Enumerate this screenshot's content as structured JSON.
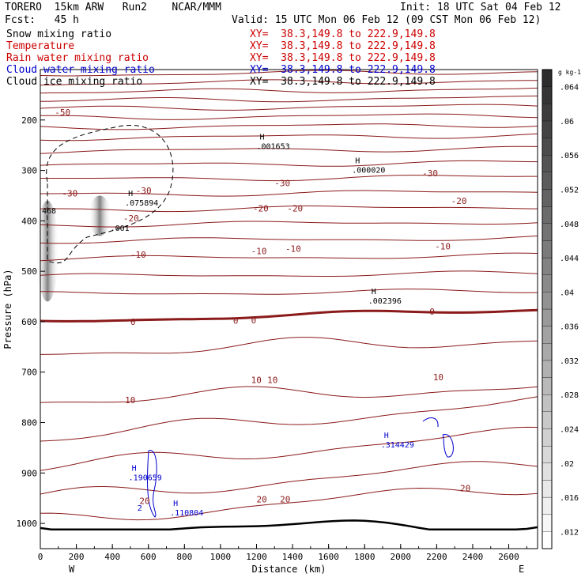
{
  "header": {
    "model_line": "TORERO  15km ARW   Run2    NCAR/MMM",
    "init": "Init: 18 UTC Sat 04 Feb 12",
    "fcst": "Fcst:   45 h",
    "valid": "Valid: 15 UTC Mon 06 Feb 12 (09 CST Mon 06 Feb 12)"
  },
  "fields": [
    {
      "label": "Snow mixing ratio",
      "xy": "XY=  38.3,149.8 to 222.9,149.8",
      "color": "#000000"
    },
    {
      "label": "Temperature",
      "xy": "XY=  38.3,149.8 to 222.9,149.8",
      "color": "#cc0000"
    },
    {
      "label": "Rain water mixing ratio",
      "xy": "XY=  38.3,149.8 to 222.9,149.8",
      "color": "#cc0000"
    },
    {
      "label": "Cloud water mixing ratio",
      "xy": "XY=  38.3,149.8 to 222.9,149.8",
      "color": "#0000cc"
    },
    {
      "label": "Cloud ice mixing ratio",
      "xy": "XY=  38.3,149.8 to 222.9,149.8",
      "color": "#000000"
    }
  ],
  "chart_data": {
    "type": "contour",
    "xlabel": "Distance (km)",
    "ylabel": "Pressure (hPa)",
    "xlim": [
      0,
      2760
    ],
    "ylim": [
      1050,
      100
    ],
    "x_ticks": [
      0,
      200,
      400,
      600,
      800,
      1000,
      1200,
      1400,
      1600,
      1800,
      2000,
      2200,
      2400,
      2600
    ],
    "y_ticks": [
      200,
      300,
      400,
      500,
      600,
      700,
      800,
      900,
      1000
    ],
    "endpoints": {
      "left": "W",
      "right": "E"
    },
    "colorbar": {
      "unit": "g kg-1",
      "ticks": [
        ".012",
        ".016",
        ".02",
        ".024",
        ".028",
        ".032",
        ".036",
        ".04",
        ".044",
        ".048",
        ".052",
        ".056",
        ".06",
        ".064"
      ],
      "min": 0.01,
      "max": 0.066
    },
    "temperature_contours": [
      {
        "value": "-50",
        "x": 80,
        "p": 185,
        "color": "#8b1a1a"
      },
      {
        "value": "-30",
        "x": 120,
        "p": 345,
        "color": "#8b1a1a"
      },
      {
        "value": "-30",
        "x": 530,
        "p": 340,
        "color": "#8b1a1a"
      },
      {
        "value": "-30",
        "x": 1300,
        "p": 325,
        "color": "#8b1a1a"
      },
      {
        "value": "-30",
        "x": 2120,
        "p": 305,
        "color": "#8b1a1a"
      },
      {
        "value": "-20",
        "x": 460,
        "p": 395,
        "color": "#8b1a1a"
      },
      {
        "value": "-20",
        "x": 1180,
        "p": 375,
        "color": "#8b1a1a"
      },
      {
        "value": "-20",
        "x": 1370,
        "p": 375,
        "color": "#8b1a1a"
      },
      {
        "value": "-20",
        "x": 2280,
        "p": 360,
        "color": "#8b1a1a"
      },
      {
        "value": "-10",
        "x": 500,
        "p": 467,
        "color": "#8b1a1a"
      },
      {
        "value": "-10",
        "x": 1170,
        "p": 460,
        "color": "#8b1a1a"
      },
      {
        "value": "-10",
        "x": 1360,
        "p": 455,
        "color": "#8b1a1a"
      },
      {
        "value": "-10",
        "x": 2190,
        "p": 450,
        "color": "#8b1a1a"
      },
      {
        "value": "0",
        "x": 500,
        "p": 600,
        "color": "#8b1a1a"
      },
      {
        "value": "0",
        "x": 1070,
        "p": 598,
        "color": "#8b1a1a"
      },
      {
        "value": "0",
        "x": 1170,
        "p": 597,
        "color": "#8b1a1a"
      },
      {
        "value": "0",
        "x": 2160,
        "p": 580,
        "color": "#8b1a1a"
      },
      {
        "value": "10",
        "x": 470,
        "p": 755,
        "color": "#8b1a1a"
      },
      {
        "value": "10",
        "x": 1170,
        "p": 715,
        "color": "#8b1a1a"
      },
      {
        "value": "10",
        "x": 1260,
        "p": 715,
        "color": "#8b1a1a"
      },
      {
        "value": "10",
        "x": 2180,
        "p": 710,
        "color": "#8b1a1a"
      },
      {
        "value": "20",
        "x": 1200,
        "p": 952,
        "color": "#8b1a1a"
      },
      {
        "value": "20",
        "x": 1330,
        "p": 952,
        "color": "#8b1a1a"
      },
      {
        "value": "20",
        "x": 2330,
        "p": 930,
        "color": "#8b1a1a"
      },
      {
        "value": "20",
        "x": 550,
        "p": 955,
        "color": "#8b1a1a"
      }
    ],
    "max_labels": [
      {
        "mark": "H",
        "value": ".001653",
        "x": 1200,
        "p": 248,
        "color": "#000000"
      },
      {
        "mark": "H",
        "value": ".000020",
        "x": 1730,
        "p": 295,
        "color": "#000000"
      },
      {
        "mark": "H",
        "value": ".075894",
        "x": 470,
        "p": 360,
        "color": "#000000"
      },
      {
        "mark": "H",
        "value": ".002396",
        "x": 1820,
        "p": 555,
        "color": "#000000"
      },
      {
        "mark": "H",
        "value": ".314429",
        "x": 1890,
        "p": 840,
        "color": "#0000cc"
      },
      {
        "mark": "H",
        "value": ".190659",
        "x": 490,
        "p": 905,
        "color": "#0000cc"
      },
      {
        "mark": "H",
        "value": ".110804",
        "x": 720,
        "p": 975,
        "color": "#0000cc"
      }
    ],
    "min_labels": [
      {
        "value": "468",
        "x": 0,
        "p": 385,
        "color": "#000000"
      },
      {
        "value": ".001",
        "x": 380,
        "p": 420,
        "color": "#000000"
      },
      {
        "value": "2",
        "x": 530,
        "p": 975,
        "color": "#0000cc"
      }
    ],
    "snow_shading": [
      {
        "x": 40,
        "p_top": 360,
        "p_bot": 560,
        "value": 0.06
      },
      {
        "x": 330,
        "p_top": 350,
        "p_bot": 430,
        "value": 0.05
      }
    ]
  }
}
